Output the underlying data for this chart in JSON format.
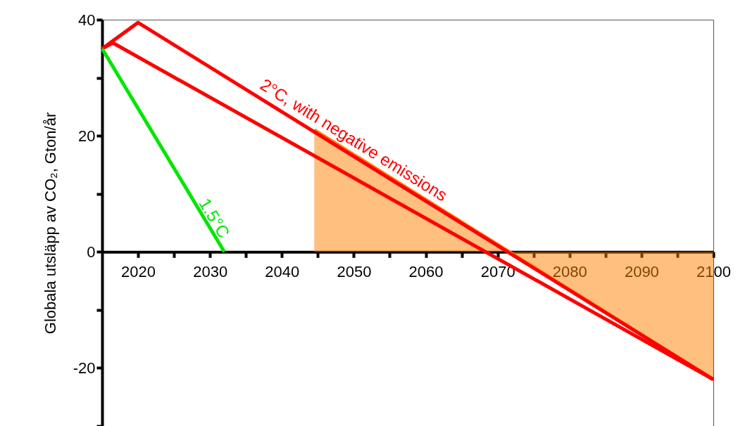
{
  "chart_data": {
    "type": "line",
    "ylabel": "Globala utsläpp av CO₂, Gton/år",
    "xlim": [
      2015,
      2100
    ],
    "ylim": [
      -30,
      40
    ],
    "xticks": [
      2020,
      {
        "value": 2025,
        "label": null
      },
      2030,
      {
        "value": 2035,
        "label": null
      },
      2040,
      {
        "value": 2045,
        "label": null
      },
      2050,
      {
        "value": 2055,
        "label": null
      },
      2060,
      {
        "value": 2065,
        "label": null
      },
      2070,
      {
        "value": 2075,
        "label": null
      },
      2080,
      {
        "value": 2085,
        "label": null
      },
      2090,
      {
        "value": 2095,
        "label": null
      },
      2100
    ],
    "yticks": [
      {
        "value": -30,
        "label": null
      },
      -20,
      {
        "value": -10,
        "label": null
      },
      0,
      {
        "value": 10,
        "label": null
      },
      20,
      {
        "value": 30,
        "label": null
      },
      40
    ],
    "grid": false,
    "legend": false,
    "marker": "none",
    "line_style": "solid",
    "series": [
      {
        "type": "area",
        "color": "#ff7f00",
        "x": [
          2044.5,
          2100
        ],
        "values": [
          21,
          -22
        ]
      },
      {
        "name": "2°C, with negative emissions",
        "color": "#ff0000",
        "x": [
          2015,
          2020,
          2100
        ],
        "values": [
          35,
          39.5,
          -22
        ]
      },
      {
        "color": "#ff0000",
        "x": [
          2015,
          2016.5,
          2100
        ],
        "values": [
          35,
          36,
          -22
        ]
      },
      {
        "name": "1.5°C",
        "color": "#00e600",
        "x": [
          2015,
          2032
        ],
        "values": [
          35,
          0
        ]
      }
    ]
  }
}
